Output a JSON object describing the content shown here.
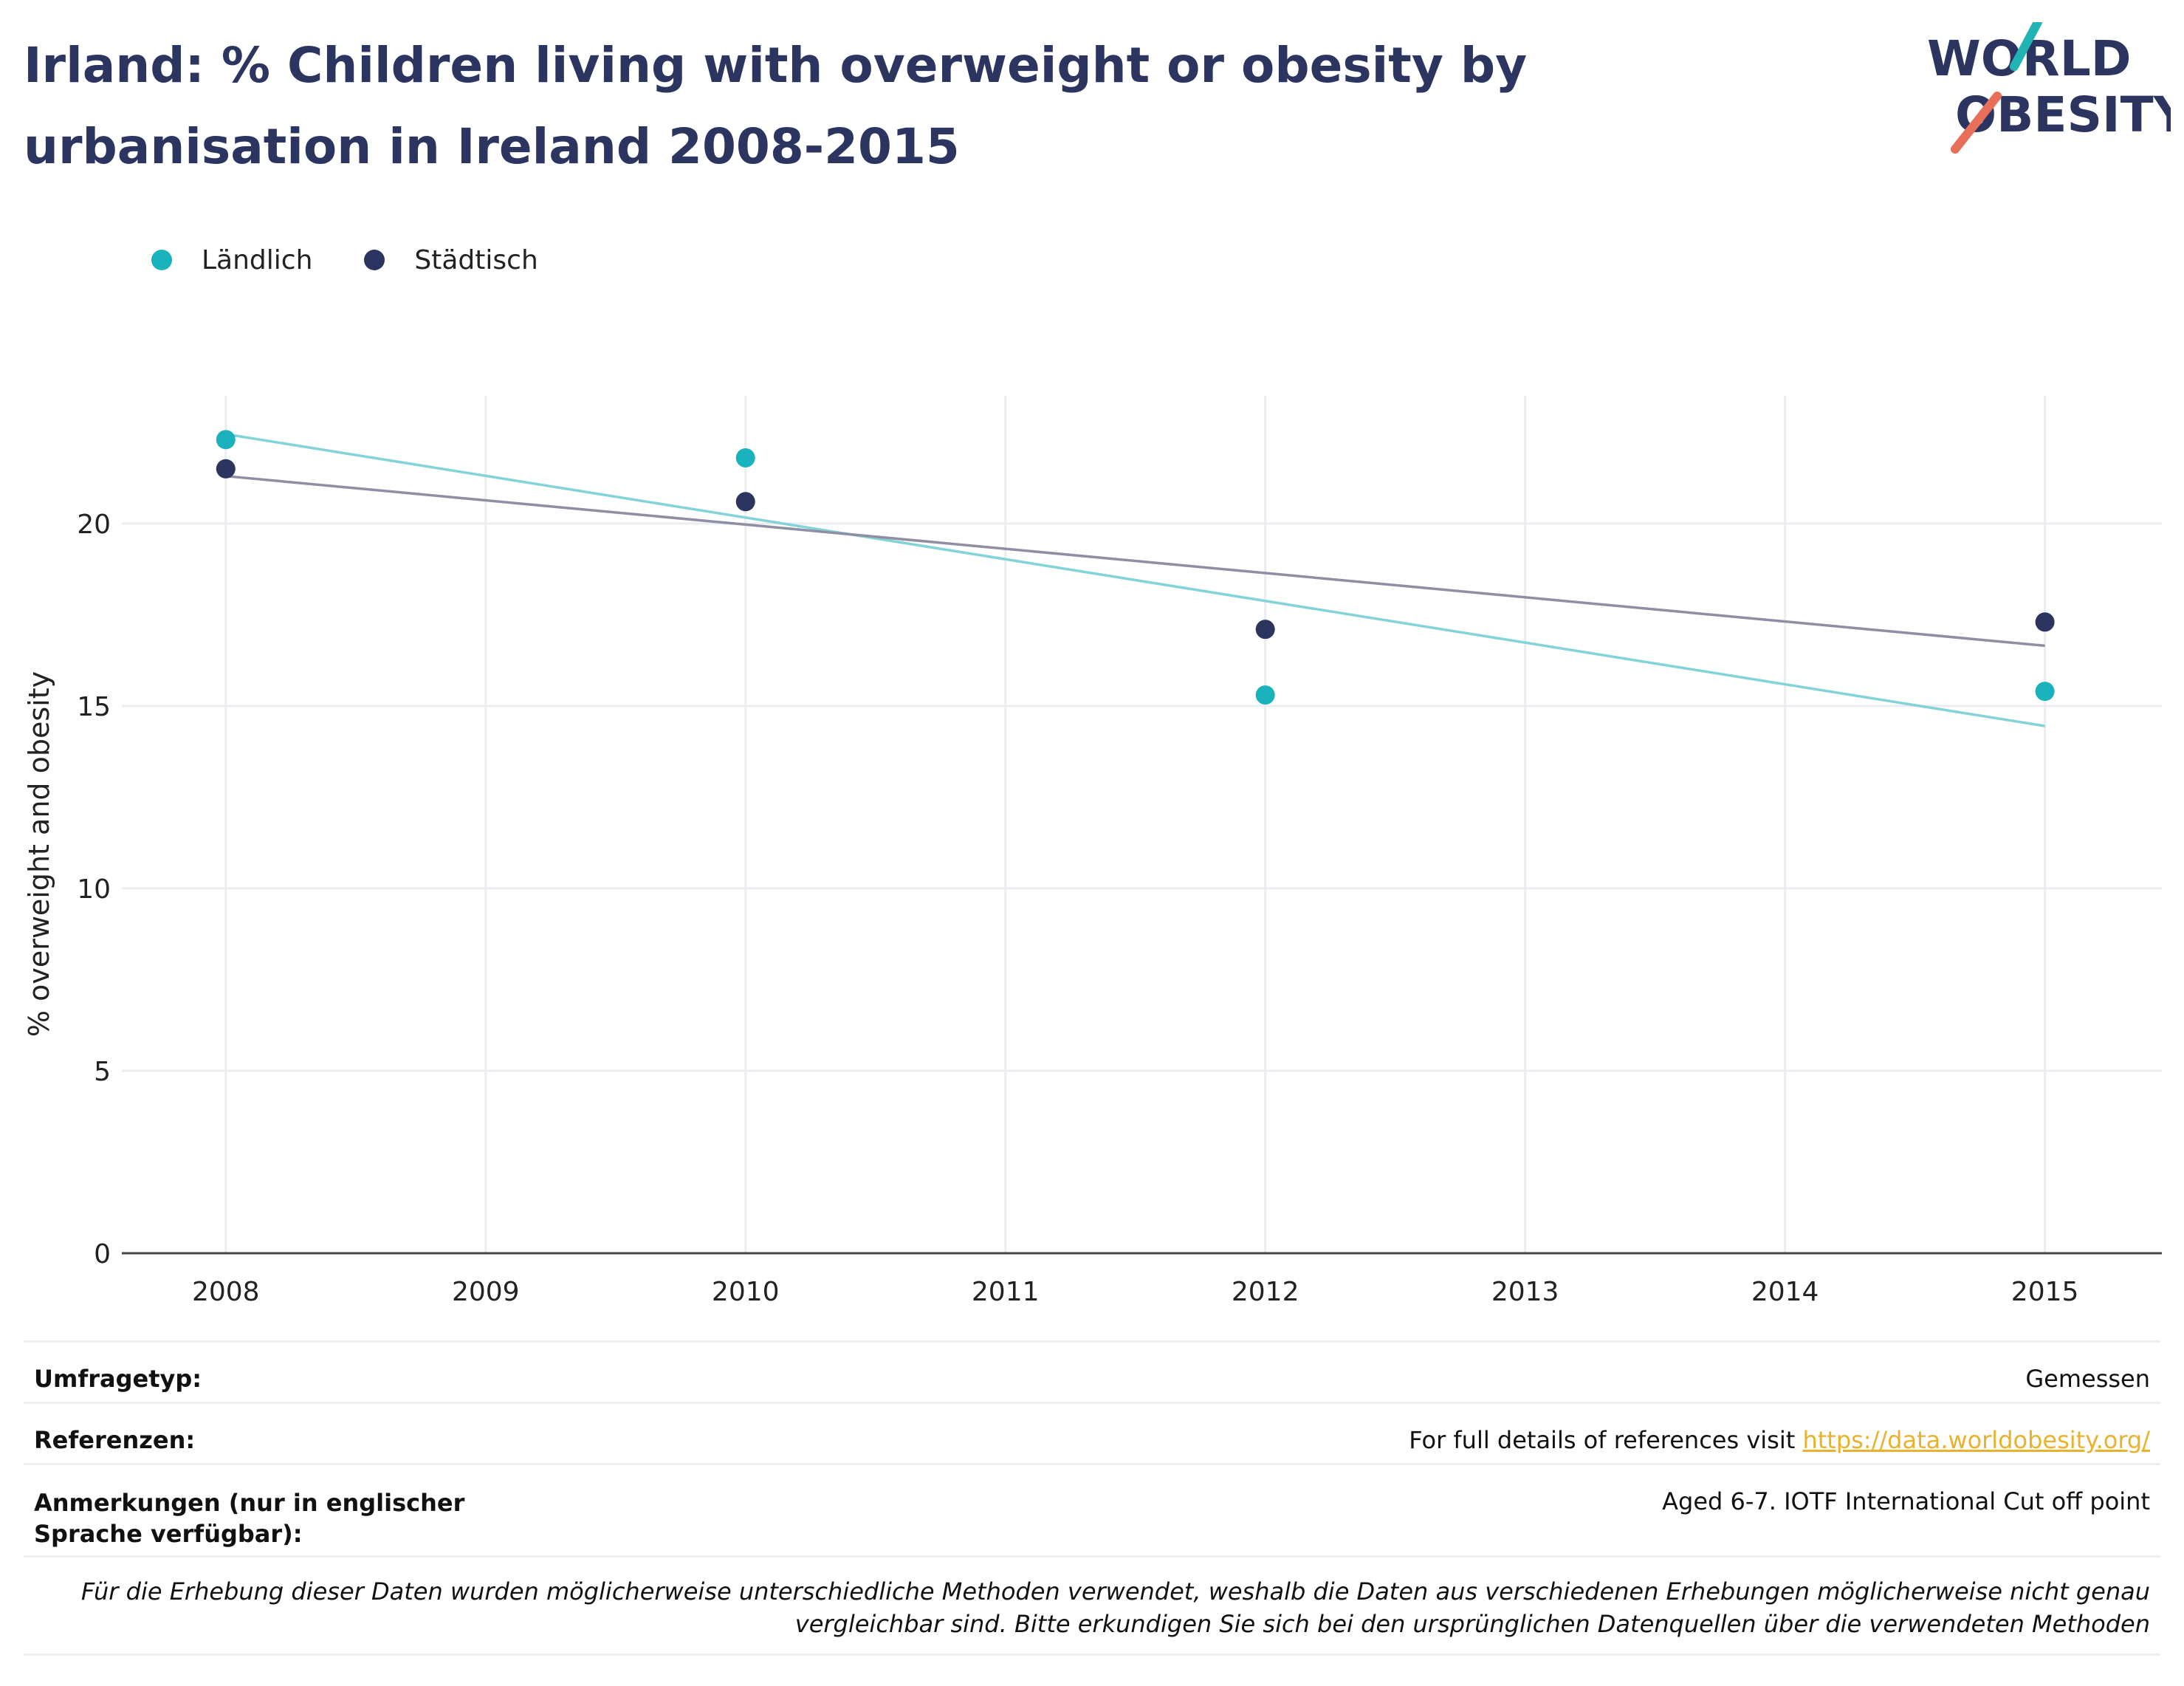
{
  "header": {
    "title": "Irland: % Children living with overweight or obesity by urbanisation in Ireland 2008-2015"
  },
  "logo": {
    "line1": "WORLD",
    "line2": "OBESITY",
    "accent_teal": "#22b3b5",
    "accent_coral": "#e8705a",
    "text_color": "#2b3560"
  },
  "legend": [
    {
      "label": "Ländlich",
      "color": "#1ab3bd"
    },
    {
      "label": "Städtisch",
      "color": "#2b3560"
    }
  ],
  "chart_data": {
    "type": "scatter",
    "ylabel": "% overweight and obesity",
    "xlabel": "",
    "xlim": [
      2007.6,
      2015.45
    ],
    "ylim": [
      0,
      23.5
    ],
    "x_ticks": [
      "2008",
      "2009",
      "2010",
      "2011",
      "2012",
      "2013",
      "2014",
      "2015"
    ],
    "y_ticks": [
      "0",
      "5",
      "10",
      "15",
      "20"
    ],
    "grid": true,
    "legend_position": "top-left",
    "series": [
      {
        "name": "Ländlich",
        "color": "#1ab3bd",
        "trend_color": "#84d3d8",
        "points": [
          {
            "x": 2008,
            "y": 22.3
          },
          {
            "x": 2010,
            "y": 21.8
          },
          {
            "x": 2012,
            "y": 15.3
          },
          {
            "x": 2015,
            "y": 15.4
          }
        ],
        "trend": [
          {
            "x": 2008,
            "y": 22.45
          },
          {
            "x": 2015,
            "y": 14.45
          }
        ]
      },
      {
        "name": "Städtisch",
        "color": "#2b3560",
        "trend_color": "#8e8fa5",
        "points": [
          {
            "x": 2008,
            "y": 21.5
          },
          {
            "x": 2010,
            "y": 20.6
          },
          {
            "x": 2012,
            "y": 17.1
          },
          {
            "x": 2015,
            "y": 17.3
          }
        ],
        "trend": [
          {
            "x": 2008,
            "y": 21.3
          },
          {
            "x": 2015,
            "y": 16.65
          }
        ]
      }
    ]
  },
  "info": {
    "survey_label": "Umfragetyp:",
    "survey_value": "Gemessen",
    "references_label": "Referenzen:",
    "references_text": "For full details of references visit ",
    "references_link": "https://data.worldobesity.org/",
    "notes_label": "Anmerkungen (nur in englischer Sprache verfügbar):",
    "notes_value": "Aged 6-7. IOTF International Cut off point",
    "disclaimer_line1": "Für die Erhebung dieser Daten wurden möglicherweise unterschiedliche Methoden verwendet, weshalb die Daten aus verschiedenen Erhebungen möglicherweise nicht genau",
    "disclaimer_line2": "vergleichbar sind. Bitte erkundigen Sie sich bei den ursprünglichen Datenquellen über die verwendeten Methoden"
  }
}
